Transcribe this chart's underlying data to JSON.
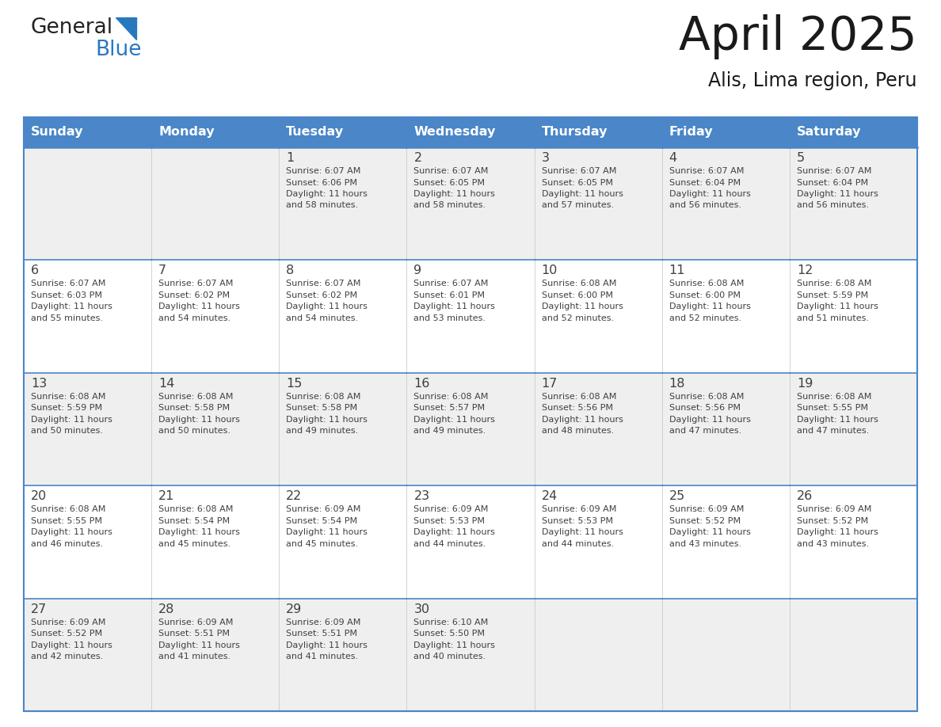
{
  "title": "April 2025",
  "subtitle": "Alis, Lima region, Peru",
  "header_bg_color": "#4A86C8",
  "header_text_color": "#FFFFFF",
  "cell_bg_row0": "#EFEFEF",
  "cell_bg_row1": "#FFFFFF",
  "border_color": "#4A86C8",
  "text_color": "#404040",
  "day_headers": [
    "Sunday",
    "Monday",
    "Tuesday",
    "Wednesday",
    "Thursday",
    "Friday",
    "Saturday"
  ],
  "weeks": [
    [
      {
        "day": "",
        "lines": []
      },
      {
        "day": "",
        "lines": []
      },
      {
        "day": "1",
        "lines": [
          "Sunrise: 6:07 AM",
          "Sunset: 6:06 PM",
          "Daylight: 11 hours",
          "and 58 minutes."
        ]
      },
      {
        "day": "2",
        "lines": [
          "Sunrise: 6:07 AM",
          "Sunset: 6:05 PM",
          "Daylight: 11 hours",
          "and 58 minutes."
        ]
      },
      {
        "day": "3",
        "lines": [
          "Sunrise: 6:07 AM",
          "Sunset: 6:05 PM",
          "Daylight: 11 hours",
          "and 57 minutes."
        ]
      },
      {
        "day": "4",
        "lines": [
          "Sunrise: 6:07 AM",
          "Sunset: 6:04 PM",
          "Daylight: 11 hours",
          "and 56 minutes."
        ]
      },
      {
        "day": "5",
        "lines": [
          "Sunrise: 6:07 AM",
          "Sunset: 6:04 PM",
          "Daylight: 11 hours",
          "and 56 minutes."
        ]
      }
    ],
    [
      {
        "day": "6",
        "lines": [
          "Sunrise: 6:07 AM",
          "Sunset: 6:03 PM",
          "Daylight: 11 hours",
          "and 55 minutes."
        ]
      },
      {
        "day": "7",
        "lines": [
          "Sunrise: 6:07 AM",
          "Sunset: 6:02 PM",
          "Daylight: 11 hours",
          "and 54 minutes."
        ]
      },
      {
        "day": "8",
        "lines": [
          "Sunrise: 6:07 AM",
          "Sunset: 6:02 PM",
          "Daylight: 11 hours",
          "and 54 minutes."
        ]
      },
      {
        "day": "9",
        "lines": [
          "Sunrise: 6:07 AM",
          "Sunset: 6:01 PM",
          "Daylight: 11 hours",
          "and 53 minutes."
        ]
      },
      {
        "day": "10",
        "lines": [
          "Sunrise: 6:08 AM",
          "Sunset: 6:00 PM",
          "Daylight: 11 hours",
          "and 52 minutes."
        ]
      },
      {
        "day": "11",
        "lines": [
          "Sunrise: 6:08 AM",
          "Sunset: 6:00 PM",
          "Daylight: 11 hours",
          "and 52 minutes."
        ]
      },
      {
        "day": "12",
        "lines": [
          "Sunrise: 6:08 AM",
          "Sunset: 5:59 PM",
          "Daylight: 11 hours",
          "and 51 minutes."
        ]
      }
    ],
    [
      {
        "day": "13",
        "lines": [
          "Sunrise: 6:08 AM",
          "Sunset: 5:59 PM",
          "Daylight: 11 hours",
          "and 50 minutes."
        ]
      },
      {
        "day": "14",
        "lines": [
          "Sunrise: 6:08 AM",
          "Sunset: 5:58 PM",
          "Daylight: 11 hours",
          "and 50 minutes."
        ]
      },
      {
        "day": "15",
        "lines": [
          "Sunrise: 6:08 AM",
          "Sunset: 5:58 PM",
          "Daylight: 11 hours",
          "and 49 minutes."
        ]
      },
      {
        "day": "16",
        "lines": [
          "Sunrise: 6:08 AM",
          "Sunset: 5:57 PM",
          "Daylight: 11 hours",
          "and 49 minutes."
        ]
      },
      {
        "day": "17",
        "lines": [
          "Sunrise: 6:08 AM",
          "Sunset: 5:56 PM",
          "Daylight: 11 hours",
          "and 48 minutes."
        ]
      },
      {
        "day": "18",
        "lines": [
          "Sunrise: 6:08 AM",
          "Sunset: 5:56 PM",
          "Daylight: 11 hours",
          "and 47 minutes."
        ]
      },
      {
        "day": "19",
        "lines": [
          "Sunrise: 6:08 AM",
          "Sunset: 5:55 PM",
          "Daylight: 11 hours",
          "and 47 minutes."
        ]
      }
    ],
    [
      {
        "day": "20",
        "lines": [
          "Sunrise: 6:08 AM",
          "Sunset: 5:55 PM",
          "Daylight: 11 hours",
          "and 46 minutes."
        ]
      },
      {
        "day": "21",
        "lines": [
          "Sunrise: 6:08 AM",
          "Sunset: 5:54 PM",
          "Daylight: 11 hours",
          "and 45 minutes."
        ]
      },
      {
        "day": "22",
        "lines": [
          "Sunrise: 6:09 AM",
          "Sunset: 5:54 PM",
          "Daylight: 11 hours",
          "and 45 minutes."
        ]
      },
      {
        "day": "23",
        "lines": [
          "Sunrise: 6:09 AM",
          "Sunset: 5:53 PM",
          "Daylight: 11 hours",
          "and 44 minutes."
        ]
      },
      {
        "day": "24",
        "lines": [
          "Sunrise: 6:09 AM",
          "Sunset: 5:53 PM",
          "Daylight: 11 hours",
          "and 44 minutes."
        ]
      },
      {
        "day": "25",
        "lines": [
          "Sunrise: 6:09 AM",
          "Sunset: 5:52 PM",
          "Daylight: 11 hours",
          "and 43 minutes."
        ]
      },
      {
        "day": "26",
        "lines": [
          "Sunrise: 6:09 AM",
          "Sunset: 5:52 PM",
          "Daylight: 11 hours",
          "and 43 minutes."
        ]
      }
    ],
    [
      {
        "day": "27",
        "lines": [
          "Sunrise: 6:09 AM",
          "Sunset: 5:52 PM",
          "Daylight: 11 hours",
          "and 42 minutes."
        ]
      },
      {
        "day": "28",
        "lines": [
          "Sunrise: 6:09 AM",
          "Sunset: 5:51 PM",
          "Daylight: 11 hours",
          "and 41 minutes."
        ]
      },
      {
        "day": "29",
        "lines": [
          "Sunrise: 6:09 AM",
          "Sunset: 5:51 PM",
          "Daylight: 11 hours",
          "and 41 minutes."
        ]
      },
      {
        "day": "30",
        "lines": [
          "Sunrise: 6:10 AM",
          "Sunset: 5:50 PM",
          "Daylight: 11 hours",
          "and 40 minutes."
        ]
      },
      {
        "day": "",
        "lines": []
      },
      {
        "day": "",
        "lines": []
      },
      {
        "day": "",
        "lines": []
      }
    ]
  ],
  "logo_general_color": "#222222",
  "logo_blue_color": "#2878BE",
  "logo_triangle_color": "#2878BE"
}
